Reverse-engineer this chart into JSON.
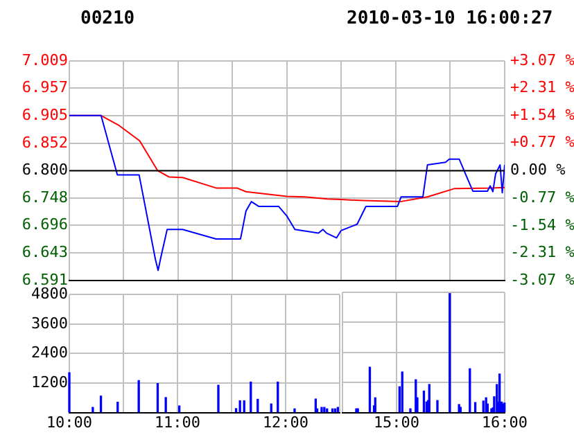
{
  "chart_data": [
    {
      "type": "line",
      "title": "00210",
      "grid": true,
      "marker": "none",
      "tick_labels": "y",
      "xlim": [
        10,
        12.5
      ],
      "xticks": [
        {
          "value": 10,
          "label": null
        },
        {
          "value": 10.5,
          "label": null
        },
        {
          "value": 11,
          "label": null
        },
        {
          "value": 11.5,
          "label": null
        },
        {
          "value": 12,
          "label": null
        },
        {
          "value": 12.5,
          "label": null
        }
      ],
      "ylim": [
        6.591,
        7.009
      ],
      "yticks": [
        6.591,
        6.643,
        6.696,
        6.748,
        {
          "value": 6.8,
          "label": "6.800"
        },
        6.852,
        6.905,
        6.957,
        7.009
      ],
      "ref_lines": [
        {
          "axis": "y",
          "value": 6.8,
          "color": "#000000"
        }
      ],
      "series": [
        {
          "color": "#0000ff",
          "x": [
            10,
            10.292,
            10.442,
            10.642,
            10.792,
            10.817,
            10.842,
            10.9,
            11.042,
            11.35,
            11.575,
            11.625,
            11.675,
            11.742,
            11.925,
            12,
            12.075,
            12.292,
            12.333,
            12.367,
            12.458,
            12.5
          ],
          "values": [
            6.905,
            6.905,
            6.792,
            6.792,
            6.631,
            6.61,
            6.635,
            6.688,
            6.688,
            6.67,
            6.67,
            6.723,
            6.741,
            6.732,
            6.732,
            6.714,
            6.688,
            6.681,
            6.688,
            6.681,
            6.672,
            6.686
          ]
        },
        {
          "color": "#ff0000",
          "x": [
            10,
            10.292,
            10.458,
            10.647,
            10.813,
            10.917,
            11.042,
            11.35,
            11.542,
            11.625,
            12,
            12.167,
            12.375,
            12.5
          ],
          "values": [
            6.905,
            6.905,
            6.886,
            6.857,
            6.8,
            6.788,
            6.787,
            6.767,
            6.767,
            6.76,
            6.751,
            6.75,
            6.746,
            6.745
          ]
        }
      ]
    },
    {
      "type": "line",
      "title": "2010-03-10 16:00:27",
      "grid": true,
      "marker": "none",
      "tick_labels": false,
      "xlim": [
        14.5,
        16
      ],
      "xticks": [
        {
          "value": 14.5,
          "label": null
        },
        {
          "value": 15,
          "label": null
        },
        {
          "value": 15.5,
          "label": null
        },
        {
          "value": 16,
          "label": null
        }
      ],
      "ylim": [
        6.591,
        7.009
      ],
      "yticks": [
        {
          "value": 6.591,
          "label": null
        },
        {
          "value": 6.643,
          "label": null
        },
        {
          "value": 6.696,
          "label": null
        },
        {
          "value": 6.748,
          "label": null
        },
        {
          "value": 6.8,
          "label": null
        },
        {
          "value": 6.852,
          "label": null
        },
        {
          "value": 6.905,
          "label": null
        },
        {
          "value": 6.957,
          "label": null
        },
        {
          "value": 7.009,
          "label": null
        }
      ],
      "y2lim": [
        -3.07,
        3.07
      ],
      "y2ticks": [
        {
          "value": -3.07,
          "label": "-3.07 %"
        },
        {
          "value": -2.31,
          "label": "-2.31 %"
        },
        {
          "value": -1.54,
          "label": "-1.54 %"
        },
        {
          "value": -0.77,
          "label": "-0.77 %"
        },
        {
          "value": 0,
          "label": "0.00 %"
        },
        {
          "value": 0.77,
          "label": "+0.77 %"
        },
        {
          "value": 1.54,
          "label": "+1.54 %"
        },
        {
          "value": 2.31,
          "label": "+2.31 %"
        },
        {
          "value": 3.07,
          "label": "+3.07 %"
        }
      ],
      "ref_lines": [
        {
          "axis": "y",
          "value": 6.8,
          "color": "#000000"
        }
      ],
      "series": [
        {
          "color": "#0000ff",
          "x": [
            14.5,
            14.647,
            14.728,
            15.017,
            15.05,
            15.25,
            15.292,
            15.458,
            15.492,
            15.583,
            15.708,
            15.842,
            15.867,
            15.892,
            15.917,
            15.958,
            15.978,
            16
          ],
          "values": [
            6.686,
            6.698,
            6.732,
            6.732,
            6.75,
            6.75,
            6.811,
            6.816,
            6.822,
            6.822,
            6.761,
            6.761,
            6.771,
            6.76,
            6.794,
            6.811,
            6.758,
            6.811
          ]
        },
        {
          "color": "#ff0000",
          "x": [
            14.5,
            14.708,
            15.042,
            15.292,
            15.542,
            15.875,
            16
          ],
          "values": [
            6.745,
            6.743,
            6.741,
            6.75,
            6.766,
            6.767,
            6.768
          ]
        }
      ]
    },
    {
      "type": "bar",
      "grid": true,
      "color": "#0000ff",
      "xlim": [
        10,
        12.5
      ],
      "xticks": [
        {
          "value": 10,
          "label": "10:00"
        },
        {
          "value": 10.5,
          "label": null
        },
        {
          "value": 11,
          "label": "11:00"
        },
        {
          "value": 11.5,
          "label": null
        },
        {
          "value": 12,
          "label": "12:00"
        },
        {
          "value": 12.5,
          "label": null
        }
      ],
      "ylim": [
        0,
        4800
      ],
      "yticks": [
        {
          "value": 0,
          "label": null
        },
        1200,
        2400,
        3600,
        4800
      ],
      "x": [
        10,
        10.217,
        10.292,
        10.447,
        10.642,
        10.817,
        10.892,
        11.017,
        11.378,
        11.542,
        11.578,
        11.617,
        11.678,
        11.742,
        11.867,
        11.928,
        12.083,
        12.278,
        12.292,
        12.333,
        12.358,
        12.383,
        12.433,
        12.458,
        12.483
      ],
      "values": [
        1620,
        210,
        670,
        420,
        1300,
        1180,
        610,
        270,
        1110,
        160,
        480,
        480,
        1240,
        540,
        350,
        1240,
        150,
        550,
        150,
        210,
        210,
        150,
        150,
        150,
        210
      ]
    },
    {
      "type": "bar",
      "grid": true,
      "color": "#0000ff",
      "tick_labels": "x",
      "xlim": [
        14.5,
        16
      ],
      "xticks": [
        {
          "value": 14.5,
          "label": null
        },
        {
          "value": 15,
          "label": "15:00"
        },
        {
          "value": 15.5,
          "label": null
        },
        {
          "value": 16,
          "label": "16:00"
        }
      ],
      "ylim": [
        0,
        4800
      ],
      "yticks": [
        0,
        1200,
        2400,
        3600,
        4800
      ],
      "x": [
        14.628,
        14.642,
        14.753,
        14.792,
        14.803,
        15.028,
        15.053,
        15.128,
        15.178,
        15.192,
        15.253,
        15.278,
        15.292,
        15.303,
        15.378,
        15.492,
        15.578,
        15.592,
        15.678,
        15.728,
        15.803,
        15.828,
        15.842,
        15.878,
        15.892,
        15.903,
        15.928,
        15.942,
        15.953,
        15.972,
        15.985,
        15.998
      ],
      "values": [
        150,
        150,
        1810,
        270,
        590,
        1030,
        1620,
        150,
        1310,
        590,
        860,
        420,
        480,
        1120,
        480,
        4750,
        320,
        210,
        1750,
        400,
        460,
        590,
        340,
        150,
        190,
        630,
        1120,
        420,
        1540,
        420,
        340,
        380
      ]
    }
  ]
}
